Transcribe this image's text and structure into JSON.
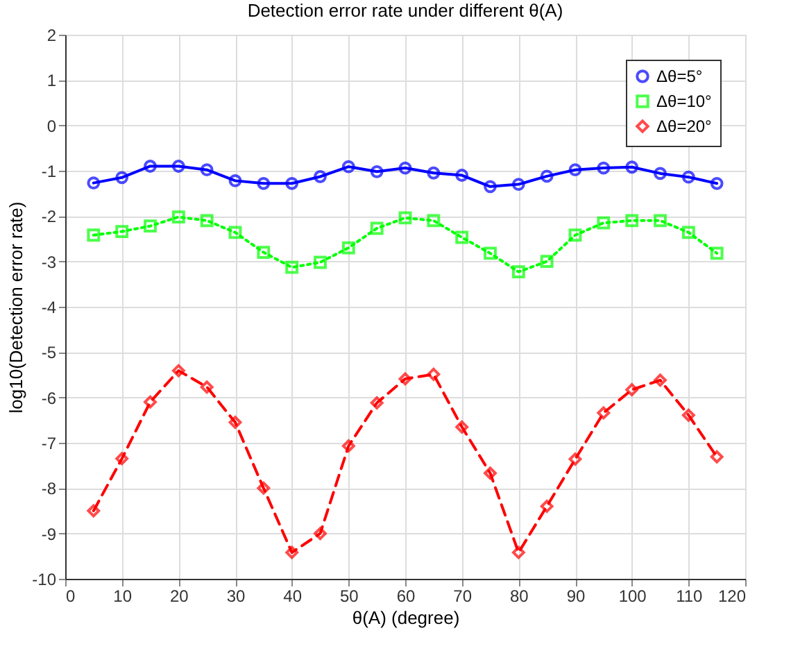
{
  "chart_data": {
    "type": "line",
    "title": "Detection error rate under different θ(A)",
    "xlabel": "θ(A) (degree)",
    "ylabel": "log10(Detection error rate)",
    "x": [
      5,
      10,
      15,
      20,
      25,
      30,
      35,
      40,
      45,
      50,
      55,
      60,
      65,
      70,
      75,
      80,
      85,
      90,
      95,
      100,
      105,
      110,
      115
    ],
    "series": [
      {
        "name": "Δθ=5°",
        "color": "#0000ff",
        "marker": "circle",
        "line_style": "solid",
        "values": [
          -1.27,
          -1.15,
          -0.9,
          -0.9,
          -0.98,
          -1.22,
          -1.28,
          -1.28,
          -1.13,
          -0.91,
          -1.02,
          -0.94,
          -1.05,
          -1.1,
          -1.35,
          -1.3,
          -1.12,
          -0.98,
          -0.94,
          -0.92,
          -1.06,
          -1.14,
          -1.28
        ]
      },
      {
        "name": "Δθ=10°",
        "color": "#00ff00",
        "marker": "square",
        "line_style": "dotted",
        "values": [
          -2.42,
          -2.34,
          -2.22,
          -2.02,
          -2.1,
          -2.36,
          -2.8,
          -3.13,
          -3.02,
          -2.7,
          -2.27,
          -2.04,
          -2.1,
          -2.47,
          -2.82,
          -3.23,
          -3.0,
          -2.42,
          -2.15,
          -2.1,
          -2.1,
          -2.36,
          -2.82
        ]
      },
      {
        "name": "Δθ=20°",
        "color": "#ff0000",
        "marker": "diamond",
        "line_style": "dashed",
        "values": [
          -8.5,
          -7.35,
          -6.1,
          -5.41,
          -5.77,
          -6.55,
          -8.0,
          -9.42,
          -9.0,
          -7.07,
          -6.12,
          -5.59,
          -5.49,
          -6.65,
          -7.67,
          -9.42,
          -8.4,
          -7.36,
          -6.34,
          -5.83,
          -5.62,
          -6.39,
          -7.31
        ]
      }
    ],
    "xlim": [
      0,
      120
    ],
    "xticks": [
      0,
      10,
      20,
      30,
      40,
      50,
      60,
      70,
      80,
      90,
      100,
      110,
      120
    ],
    "ylim": [
      -10,
      2
    ],
    "yticks": [
      -10,
      -9,
      -8,
      -7,
      -6,
      -5,
      -4,
      -3,
      -2,
      -1,
      0,
      1,
      2
    ],
    "grid": true,
    "legend": "top right"
  }
}
